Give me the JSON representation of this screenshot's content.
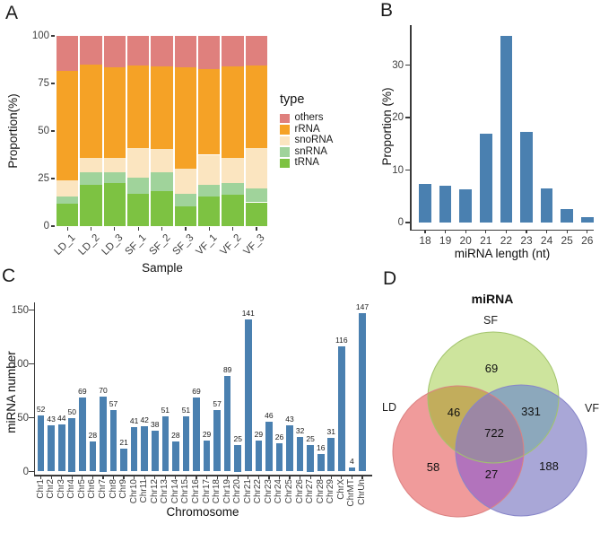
{
  "chart_data": [
    {
      "panel": "A",
      "type": "stacked-bar",
      "xlabel": "Sample",
      "ylabel": "Proportion(%)",
      "ylim": [
        0,
        100
      ],
      "yticks": [
        0,
        25,
        50,
        75,
        100
      ],
      "categories": [
        "LD_1",
        "LD_2",
        "LD_3",
        "SF_1",
        "SF_2",
        "SF_3",
        "VF_1",
        "VF_2",
        "VF_3"
      ],
      "legend": {
        "title": "type",
        "position": "right",
        "items": [
          {
            "label": "others",
            "color": "#DF807D"
          },
          {
            "label": "rRNA",
            "color": "#F5A226"
          },
          {
            "label": "snoRNA",
            "color": "#FBE5C0"
          },
          {
            "label": "snRNA",
            "color": "#A0D39B"
          },
          {
            "label": "tRNA",
            "color": "#7DC242"
          }
        ]
      },
      "series": [
        {
          "name": "tRNA",
          "color": "#7DC242",
          "values": [
            12,
            21.5,
            22.5,
            17,
            18.5,
            10.5,
            15.5,
            16.5,
            12.5
          ]
        },
        {
          "name": "snRNA",
          "color": "#A0D39B",
          "values": [
            3.5,
            7,
            6,
            8.5,
            10,
            6.5,
            6,
            6,
            7.5
          ]
        },
        {
          "name": "snoRNA",
          "color": "#FBE5C0",
          "values": [
            8.5,
            7.5,
            7.5,
            15.5,
            12,
            13,
            16,
            13.5,
            21
          ]
        },
        {
          "name": "rRNA",
          "color": "#F5A226",
          "values": [
            57.5,
            49,
            47.5,
            43.5,
            43.5,
            53.5,
            45,
            48,
            43.5
          ]
        },
        {
          "name": "others",
          "color": "#DF807D",
          "values": [
            18.5,
            15,
            16.5,
            15.5,
            16,
            16.5,
            17.5,
            16,
            15.5
          ]
        }
      ]
    },
    {
      "panel": "B",
      "type": "bar",
      "xlabel": "miRNA length (nt)",
      "ylabel": "Proportion (%)",
      "ylim": [
        0,
        37
      ],
      "yticks": [
        0,
        10,
        20,
        30
      ],
      "categories": [
        "18",
        "19",
        "20",
        "21",
        "22",
        "23",
        "24",
        "25",
        "26"
      ],
      "values": [
        7.4,
        7,
        6.3,
        17,
        35.5,
        17.2,
        6.5,
        2.5,
        1.1
      ],
      "bar_color": "#4A80B0"
    },
    {
      "panel": "C",
      "type": "bar",
      "xlabel": "Chromosome",
      "ylabel": "miRNA number",
      "ylim": [
        0,
        155
      ],
      "yticks": [
        0,
        50,
        100,
        150
      ],
      "categories": [
        "Chr1",
        "Chr2",
        "Chr3",
        "Chr4",
        "Chr5",
        "Chr6",
        "Chr7",
        "Chr8",
        "Chr9",
        "Chr10",
        "Chr11",
        "Chr12",
        "Chr13",
        "Chr14",
        "Chr15",
        "Chr16",
        "Chr17",
        "Chr18",
        "Chr19",
        "Chr20",
        "Chr21",
        "Chr22",
        "Chr23",
        "Chr24",
        "Chr25",
        "Chr26",
        "Chr27",
        "Chr28",
        "Chr29",
        "ChrX",
        "ChrMT",
        "ChrUn"
      ],
      "values": [
        52,
        43,
        44,
        50,
        69,
        28,
        70,
        57,
        21,
        41,
        42,
        38,
        51,
        28,
        51,
        69,
        29,
        57,
        89,
        25,
        141,
        29,
        46,
        26,
        43,
        32,
        25,
        16,
        31,
        116,
        4,
        147
      ],
      "bar_color": "#4A80B0",
      "value_labels": true
    },
    {
      "panel": "D",
      "type": "venn",
      "title": "miRNA",
      "sets": [
        {
          "name": "SF",
          "fill": "#CDE49D",
          "stroke": "#A2C46C"
        },
        {
          "name": "LD",
          "fill": "#F09B9B",
          "stroke": "#DB8282"
        },
        {
          "name": "VF",
          "fill": "#A9A7D7",
          "stroke": "#8886C9"
        }
      ],
      "overlap_colors": {
        "SF_LD": "#C2AD5C",
        "SF_VF": "#8CA8BC",
        "LD_VF": "#B273BC",
        "SF_LD_VF": "#9C87A4"
      },
      "counts": {
        "SF_only": 69,
        "LD_only": 58,
        "VF_only": 188,
        "SF_LD": 46,
        "SF_VF": 331,
        "LD_VF": 27,
        "SF_LD_VF": 722
      }
    }
  ]
}
